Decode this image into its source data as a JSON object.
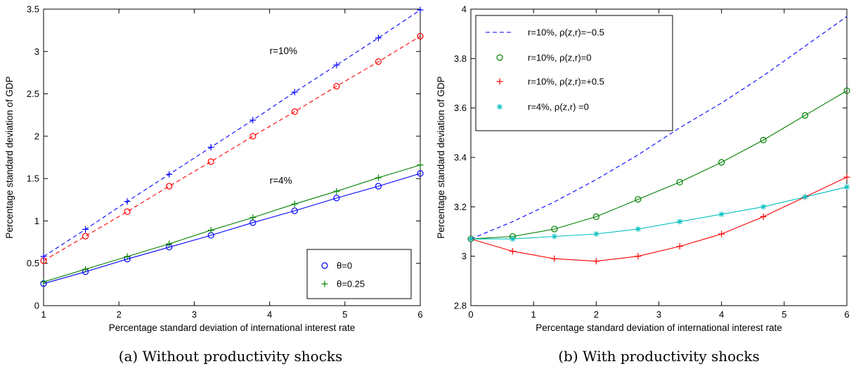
{
  "colors": {
    "blue": "#0000ff",
    "red": "#ff0000",
    "green": "#008000",
    "cyan": "#00bfbf"
  },
  "chart_data": [
    {
      "type": "line",
      "caption": "(a) Without productivity shocks",
      "xlabel": "Percentage standard deviation of international interest rate",
      "ylabel": "Percentage standard deviation of GDP",
      "xlim": [
        1,
        6
      ],
      "ylim": [
        0,
        3.5
      ],
      "xticks": [
        "1",
        "2",
        "3",
        "4",
        "5",
        "6"
      ],
      "yticks": [
        "0",
        "0.5",
        "1",
        "1.5",
        "2",
        "2.5",
        "3",
        "3.5"
      ],
      "x": [
        1,
        1.556,
        2.111,
        2.667,
        3.222,
        3.778,
        4.333,
        4.889,
        5.444,
        6
      ],
      "annotations": [
        "r=10%",
        "r=4%"
      ],
      "legend": {
        "position": "bottom-right",
        "entries": [
          "θ=0",
          "θ=0.25"
        ]
      },
      "series": [
        {
          "name": "θ=0",
          "group": "r=10%",
          "color": "red",
          "dashed": true,
          "marker": "circle",
          "values": [
            0.53,
            0.82,
            1.11,
            1.41,
            1.7,
            2.0,
            2.29,
            2.59,
            2.88,
            3.18
          ]
        },
        {
          "name": "θ=0.25",
          "group": "r=10%",
          "color": "blue",
          "dashed": true,
          "marker": "plus",
          "values": [
            0.58,
            0.9,
            1.23,
            1.55,
            1.87,
            2.19,
            2.52,
            2.84,
            3.16,
            3.49
          ]
        },
        {
          "name": "θ=0",
          "group": "r=4%",
          "color": "blue",
          "dashed": false,
          "marker": "circle",
          "values": [
            0.26,
            0.4,
            0.55,
            0.69,
            0.83,
            0.98,
            1.12,
            1.27,
            1.41,
            1.56
          ]
        },
        {
          "name": "θ=0.25",
          "group": "r=4%",
          "color": "green",
          "dashed": false,
          "marker": "plus",
          "values": [
            0.28,
            0.43,
            0.58,
            0.73,
            0.89,
            1.04,
            1.2,
            1.35,
            1.51,
            1.66
          ]
        }
      ]
    },
    {
      "type": "line",
      "caption": "(b) With productivity shocks",
      "xlabel": "Percentage standard deviation of international interest rate",
      "ylabel": "Percentage standard deviation of GDP",
      "xlim": [
        0,
        6
      ],
      "ylim": [
        2.8,
        4
      ],
      "xticks": [
        "0",
        "1",
        "2",
        "3",
        "4",
        "5",
        "6"
      ],
      "yticks": [
        "2.8",
        "3",
        "3.2",
        "3.4",
        "3.6",
        "3.8",
        "4"
      ],
      "legend": {
        "position": "top-left",
        "entries": [
          "r=10%, ρ(z,r)=−0.5",
          "r=10%, ρ(z,r)=0",
          "r=10%, ρ(z,r)=+0.5",
          "r=4%, ρ(z,r) =0"
        ]
      },
      "series": [
        {
          "name": "r=10%, ρ(z,r)=−0.5",
          "color": "blue",
          "dashed": true,
          "marker": "none",
          "x": [
            0,
            0.667,
            1.333,
            2,
            2.667,
            3.333,
            4,
            4.667,
            5.333,
            6
          ],
          "values": [
            3.07,
            3.14,
            3.22,
            3.31,
            3.41,
            3.52,
            3.62,
            3.73,
            3.85,
            3.97
          ]
        },
        {
          "name": "r=10%, ρ(z,r)=0",
          "color": "green",
          "dashed": false,
          "marker": "circle",
          "x": [
            0,
            0.667,
            1.333,
            2,
            2.667,
            3.333,
            4,
            4.667,
            5.333,
            6
          ],
          "values": [
            3.07,
            3.08,
            3.11,
            3.16,
            3.23,
            3.3,
            3.38,
            3.47,
            3.57,
            3.67
          ]
        },
        {
          "name": "r=10%, ρ(z,r)=+0.5",
          "color": "red",
          "dashed": false,
          "marker": "plus",
          "x": [
            0,
            0.667,
            1.333,
            2,
            2.667,
            3.333,
            4,
            4.667,
            5.333,
            6
          ],
          "values": [
            3.07,
            3.02,
            2.99,
            2.98,
            3.0,
            3.04,
            3.09,
            3.16,
            3.24,
            3.32
          ]
        },
        {
          "name": "r=4%, ρ(z,r) =0",
          "color": "cyan",
          "dashed": false,
          "marker": "star",
          "x": [
            0,
            0.667,
            1.333,
            2,
            2.667,
            3.333,
            4,
            4.667,
            5.333,
            6
          ],
          "values": [
            3.07,
            3.07,
            3.08,
            3.09,
            3.11,
            3.14,
            3.17,
            3.2,
            3.24,
            3.28
          ]
        }
      ]
    }
  ]
}
